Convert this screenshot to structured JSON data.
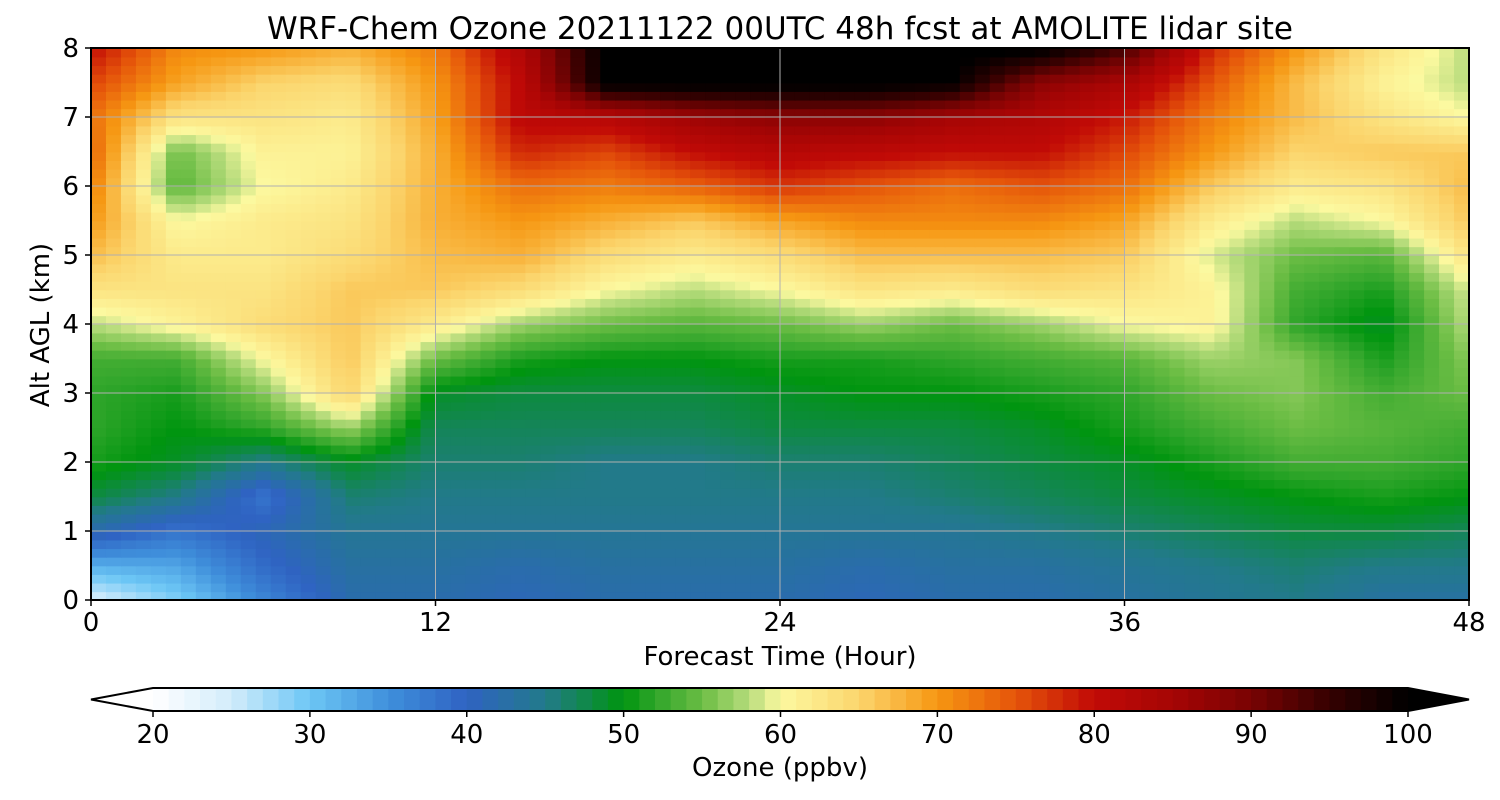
{
  "chart_data": {
    "type": "heatmap",
    "title": "WRF-Chem Ozone  20211122 00UTC 48h fcst at AMOLITE lidar site",
    "xlabel": "Forecast Time (Hour)",
    "ylabel": "Alt AGL (km)",
    "xlim": [
      0,
      48
    ],
    "ylim": [
      0,
      8
    ],
    "xticks": [
      "0",
      "12",
      "24",
      "36",
      "48"
    ],
    "yticks": [
      "0",
      "1",
      "2",
      "3",
      "4",
      "5",
      "6",
      "7",
      "8"
    ],
    "grid": true,
    "x": [
      0,
      3,
      6,
      9,
      12,
      15,
      18,
      21,
      24,
      27,
      30,
      33,
      36,
      39,
      42,
      45,
      48
    ],
    "y": [
      0,
      0.5,
      1,
      1.5,
      2,
      2.5,
      3,
      3.5,
      4,
      4.5,
      5,
      5.5,
      6,
      6.5,
      7,
      7.5,
      8
    ],
    "z": [
      [
        24,
        29,
        36,
        42,
        42,
        41,
        42,
        42,
        42,
        41,
        42,
        42,
        43,
        44,
        45,
        43,
        43
      ],
      [
        32,
        33,
        39,
        43,
        43,
        42,
        43,
        43,
        43,
        42,
        43,
        43,
        44,
        45,
        46,
        45,
        45
      ],
      [
        42,
        38,
        41,
        44,
        44,
        44,
        44,
        44,
        44,
        44,
        44,
        45,
        46,
        47,
        48,
        48,
        47
      ],
      [
        48,
        45,
        38,
        46,
        45,
        45,
        45,
        45,
        45,
        45,
        46,
        47,
        48,
        49,
        50,
        51,
        50
      ],
      [
        51,
        49,
        45,
        49,
        46,
        46,
        45,
        45,
        46,
        46,
        47,
        48,
        49,
        51,
        53,
        53,
        52
      ],
      [
        52,
        50,
        52,
        57,
        47,
        47,
        47,
        47,
        48,
        48,
        48,
        49,
        51,
        53,
        55,
        54,
        53
      ],
      [
        52,
        51,
        56,
        65,
        49,
        48,
        48,
        48,
        49,
        50,
        50,
        51,
        52,
        55,
        56,
        53,
        55
      ],
      [
        53,
        53,
        60,
        66,
        55,
        51,
        50,
        50,
        51,
        51,
        52,
        53,
        54,
        57,
        56,
        51,
        56
      ],
      [
        58,
        61,
        64,
        66,
        62,
        57,
        55,
        54,
        55,
        57,
        55,
        57,
        60,
        61,
        52,
        49,
        58
      ],
      [
        63,
        63,
        63,
        66,
        66,
        64,
        60,
        58,
        60,
        63,
        62,
        64,
        63,
        61,
        53,
        51,
        59
      ],
      [
        67,
        62,
        62,
        64,
        67,
        68,
        64,
        62,
        64,
        67,
        67,
        67,
        66,
        59,
        55,
        54,
        63
      ],
      [
        70,
        60,
        62,
        63,
        68,
        70,
        68,
        66,
        69,
        71,
        71,
        71,
        69,
        62,
        58,
        60,
        66
      ],
      [
        72,
        54,
        60,
        62,
        68,
        73,
        72,
        74,
        77,
        75,
        73,
        75,
        73,
        66,
        62,
        63,
        67
      ],
      [
        74,
        55,
        61,
        61,
        68,
        78,
        76,
        80,
        82,
        81,
        80,
        80,
        76,
        70,
        65,
        66,
        66
      ],
      [
        73,
        63,
        63,
        62,
        69,
        81,
        82,
        86,
        88,
        88,
        85,
        83,
        79,
        72,
        67,
        63,
        60
      ],
      [
        76,
        69,
        65,
        64,
        70,
        81,
        101,
        101,
        101,
        101,
        100,
        88,
        84,
        75,
        67,
        61,
        58
      ],
      [
        80,
        71,
        70,
        68,
        72,
        83,
        101,
        101,
        101,
        101,
        101,
        101,
        94,
        78,
        70,
        63,
        58
      ]
    ],
    "colorbar": {
      "label": "Ozone  (ppbv)",
      "ticks": [
        "20",
        "30",
        "40",
        "50",
        "60",
        "70",
        "80",
        "90",
        "100"
      ],
      "range": [
        20,
        100
      ],
      "extend": "both"
    }
  }
}
